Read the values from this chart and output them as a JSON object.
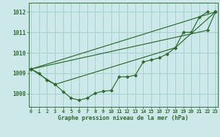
{
  "xlabel": "Graphe pression niveau de la mer (hPa)",
  "x_hours": [
    0,
    1,
    2,
    3,
    4,
    5,
    6,
    7,
    8,
    9,
    10,
    11,
    12,
    13,
    14,
    15,
    16,
    17,
    18,
    19,
    20,
    21,
    22,
    23
  ],
  "line1": [
    1009.2,
    1009.0,
    1008.65,
    1008.45,
    1008.1,
    1007.78,
    1007.68,
    1007.78,
    1008.02,
    1008.12,
    1008.15,
    1008.82,
    1008.82,
    1008.9,
    1009.55,
    1009.65,
    1009.75,
    1009.95,
    1010.25,
    1011.0,
    1011.0,
    1011.75,
    1012.0,
    null
  ],
  "line2": [
    1009.2,
    null,
    null,
    null,
    null,
    null,
    null,
    null,
    null,
    null,
    null,
    null,
    null,
    null,
    null,
    null,
    null,
    null,
    null,
    null,
    null,
    null,
    1011.1,
    1012.0
  ],
  "line3": [
    1009.2,
    null,
    null,
    null,
    null,
    null,
    null,
    null,
    null,
    null,
    null,
    null,
    null,
    null,
    null,
    null,
    null,
    null,
    null,
    null,
    null,
    null,
    null,
    1012.0
  ],
  "line4": [
    1009.2,
    null,
    null,
    1008.45,
    null,
    null,
    null,
    null,
    null,
    null,
    null,
    null,
    null,
    null,
    null,
    null,
    null,
    null,
    1010.25,
    null,
    null,
    null,
    null,
    1012.0
  ],
  "bg_color": "#cce8e8",
  "grid_color": "#99cccc",
  "line_color": "#2d6a2d",
  "ylim_min": 1007.35,
  "ylim_max": 1012.45,
  "yticks": [
    1008,
    1009,
    1010,
    1011,
    1012
  ],
  "xlim_min": -0.3,
  "xlim_max": 23.3,
  "xtick_labels": [
    "0",
    "1",
    "2",
    "3",
    "4",
    "5",
    "6",
    "7",
    "8",
    "9",
    "10",
    "11",
    "12",
    "13",
    "14",
    "15",
    "16",
    "17",
    "18",
    "19",
    "20",
    "21",
    "22",
    "23"
  ],
  "xlabel_fontsize": 6.0,
  "ylabel_fontsize": 5.8,
  "xtick_fontsize": 5.0,
  "ytick_fontsize": 5.8,
  "linewidth": 0.9,
  "markersize": 2.5
}
